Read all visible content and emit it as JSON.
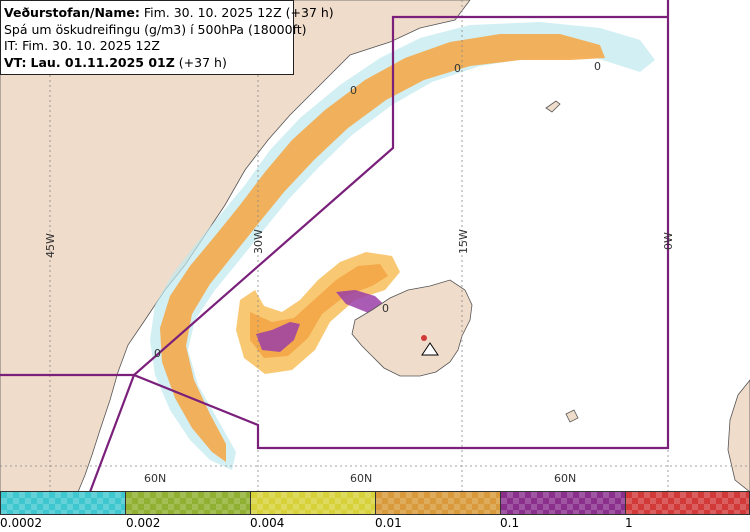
{
  "header": {
    "source_label": "Veðurstofan/Name:",
    "source_value": "Fim. 30. 10. 2025 12Z (+37 h)",
    "product": "Spá um öskudreifingu (g/m3) í 500hPa (18000ft)",
    "issue_time": "IT: Fim. 30. 10. 2025 12Z",
    "valid_time_label": "VT:",
    "valid_time_value": "Lau. 01.11.2025 01Z",
    "valid_time_lead": "(+37 h)"
  },
  "map": {
    "longitude_labels": [
      "45W",
      "30W",
      "15W",
      "0W"
    ],
    "latitude_labels": [
      "60N",
      "60N",
      "60N"
    ],
    "zero_labels": [
      "0",
      "0",
      "0",
      "0",
      "0"
    ],
    "colors": {
      "land": "#f0dccb",
      "sea": "#ffffff",
      "coast": "#555555",
      "boundary": "#7a1f7a",
      "ash_low": "#f9c56b",
      "ash_mid": "#f4a94a",
      "ash_high": "#9b3fa8",
      "ash_faint": "#bfe8ee",
      "ash_yellow": "#f2f3a0"
    },
    "volcano_icon": "volcano-triangle-icon"
  },
  "legend": {
    "labels": [
      "0.0002",
      "0.002",
      "0.004",
      "0.01",
      "0.1",
      "1"
    ],
    "colors": [
      "#3fc7cf",
      "#8fb030",
      "#d7d23a",
      "#d89a3a",
      "#8a2f8c",
      "#d23a3a"
    ]
  }
}
